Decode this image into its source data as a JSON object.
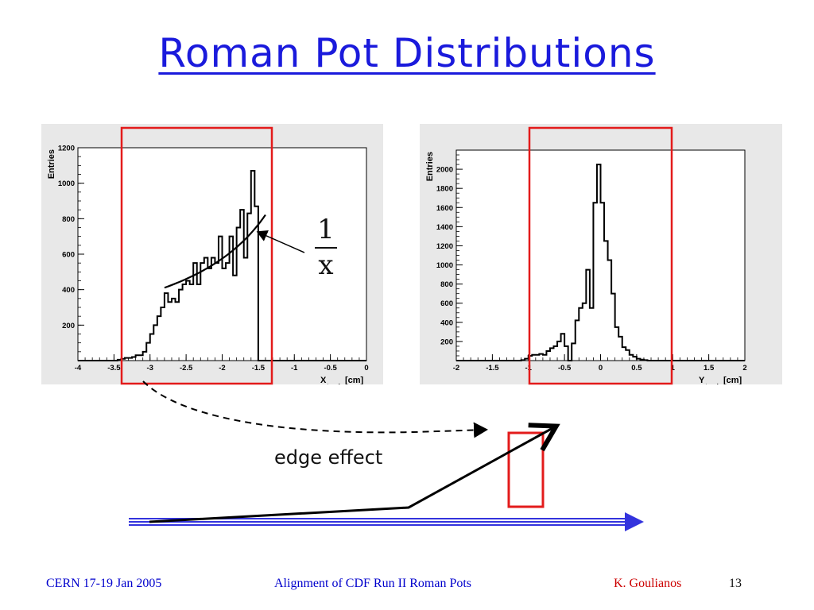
{
  "title": "Roman Pot Distributions",
  "fraction": {
    "numerator": "1",
    "denominator": "x"
  },
  "edge_label": "edge effect",
  "footer": {
    "left": "CERN 17-19 Jan 2005",
    "center": "Alignment of  CDF Run II Roman Pots",
    "author": "K. Goulianos",
    "page": "13"
  },
  "colors": {
    "title": "#1a1adc",
    "footer": "#0000cc",
    "author": "#cc0000",
    "highlight_box": "#e31b1b",
    "beam": "#3333dd",
    "histogram": "#000000"
  },
  "chart_data": [
    {
      "type": "histogram",
      "ylabel": "Entries",
      "xlabel": "X",
      "xlabel_sub": "track",
      "xunit": "[cm]",
      "xlim": [
        -4,
        0
      ],
      "ylim": [
        0,
        1200
      ],
      "x_ticks": [
        "-4",
        "-3.5",
        "-3",
        "-2.5",
        "-2",
        "-1.5",
        "-1",
        "-0.5",
        "0"
      ],
      "y_ticks": [
        "200",
        "400",
        "600",
        "800",
        "1000",
        "1200"
      ],
      "bin_start": -4.0,
      "bin_width": 0.05,
      "values": [
        0,
        0,
        0,
        0,
        0,
        0,
        0,
        0,
        0,
        0,
        0,
        5,
        10,
        15,
        15,
        20,
        30,
        30,
        50,
        100,
        150,
        200,
        250,
        300,
        380,
        330,
        350,
        330,
        400,
        430,
        450,
        430,
        550,
        430,
        550,
        580,
        520,
        580,
        550,
        700,
        520,
        550,
        700,
        480,
        750,
        850,
        580,
        830,
        1070,
        870,
        0,
        0,
        0,
        0,
        0,
        0,
        0,
        0,
        0,
        0,
        0,
        0,
        0,
        0,
        0,
        0,
        0,
        0,
        0,
        0,
        0,
        0,
        0,
        0,
        0,
        0,
        0,
        0,
        0,
        0
      ],
      "fit_curve": {
        "label": "1/x",
        "x_range": [
          -2.8,
          -1.4
        ]
      },
      "highlight_range": [
        -3.6,
        -1.35
      ]
    },
    {
      "type": "histogram",
      "ylabel": "Entries",
      "xlabel": "Y",
      "xlabel_sub": "track",
      "xunit": "[cm]",
      "xlim": [
        -2,
        2
      ],
      "ylim": [
        0,
        2200
      ],
      "x_ticks": [
        "-2",
        "-1.5",
        "-1",
        "-0.5",
        "0",
        "0.5",
        "1",
        "1.5",
        "2"
      ],
      "y_ticks": [
        "200",
        "400",
        "600",
        "800",
        "1000",
        "1200",
        "1400",
        "1600",
        "1800",
        "2000"
      ],
      "bin_start": -2.0,
      "bin_width": 0.05,
      "values": [
        0,
        0,
        0,
        0,
        0,
        0,
        0,
        0,
        0,
        0,
        0,
        0,
        0,
        0,
        0,
        0,
        0,
        0,
        5,
        20,
        50,
        60,
        60,
        70,
        60,
        100,
        130,
        150,
        200,
        280,
        150,
        0,
        180,
        420,
        550,
        600,
        950,
        550,
        1650,
        2050,
        1650,
        1250,
        1050,
        700,
        350,
        250,
        140,
        110,
        60,
        40,
        20,
        10,
        5,
        0,
        0,
        0,
        0,
        0,
        0,
        0,
        0,
        0,
        0,
        0,
        0,
        0,
        0,
        0,
        0,
        0,
        0,
        0,
        0,
        0,
        0,
        0,
        0,
        0,
        0,
        0
      ],
      "highlight_range": [
        -1.0,
        0.95
      ]
    }
  ]
}
